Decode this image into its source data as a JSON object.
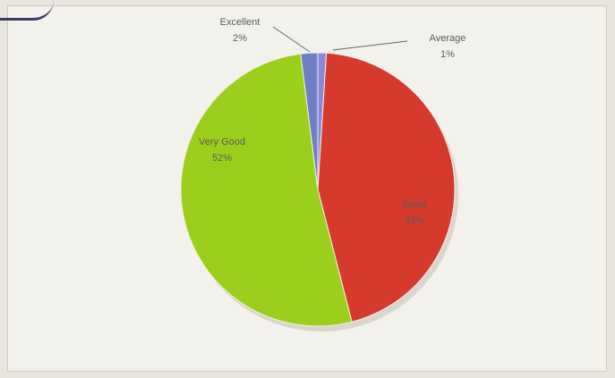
{
  "chart_data": {
    "type": "pie",
    "title": "",
    "slices": [
      {
        "label": "Average",
        "value": 1,
        "display": "1%",
        "color": "#8a86d8"
      },
      {
        "label": "Good",
        "value": 45,
        "display": "45%",
        "color": "#d63a2c"
      },
      {
        "label": "Very Good",
        "value": 52,
        "display": "52%",
        "color": "#9ccf1c"
      },
      {
        "label": "Excellent",
        "value": 2,
        "display": "2%",
        "color": "#6f7fc4"
      }
    ]
  }
}
